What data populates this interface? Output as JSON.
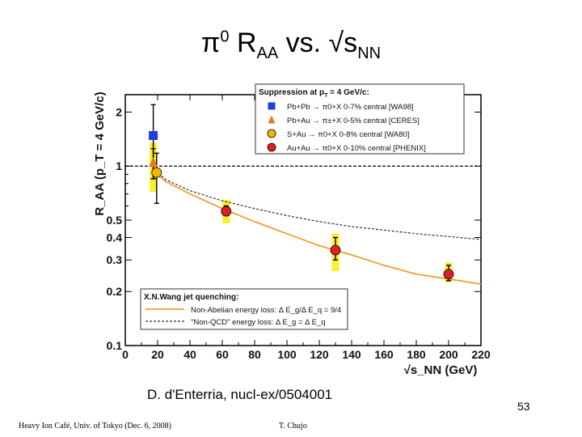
{
  "slide": {
    "title_parts": {
      "pi": "π",
      "sup": "0",
      "r": " R",
      "aa": "AA",
      "vs": " vs. √s",
      "nn": "NN"
    },
    "citation": "D. d'Enterria, nucl-ex/0504001",
    "page_number": "53",
    "footer_left": "Heavy Ion Café, Univ. of Tokyo (Dec. 6, 2008)",
    "footer_center": "T. Chujo"
  },
  "chart_data": {
    "type": "scatter",
    "ylabel": "R_AA (p_T = 4 GeV/c)",
    "xlabel": "√s_NN (GeV)",
    "xlim": [
      0,
      220
    ],
    "ylim": [
      0.1,
      2.5
    ],
    "yscale": "log",
    "x_ticks": [
      0,
      20,
      40,
      60,
      80,
      100,
      120,
      140,
      160,
      180,
      200,
      220
    ],
    "y_tick_labels": [
      {
        "value": 0.1,
        "label": "0.1"
      },
      {
        "value": 0.2,
        "label": "0.2"
      },
      {
        "value": 0.3,
        "label": "0.3"
      },
      {
        "value": 0.4,
        "label": "0.4"
      },
      {
        "value": 0.5,
        "label": "0.5"
      },
      {
        "value": 1,
        "label": "1"
      },
      {
        "value": 2,
        "label": "2"
      }
    ],
    "reference_line": 1,
    "legend_title_parts": {
      "a": "Suppression at p",
      "b": "T",
      "c": " = 4 GeV/c:"
    },
    "series": [
      {
        "name": "Pb+Pb → π0+X 0-7% central [WA98]",
        "marker": "square",
        "color": "#1f3fd6",
        "points": [
          {
            "x": 17.3,
            "y": 1.48,
            "err": [
              0.85,
              2.2
            ]
          }
        ]
      },
      {
        "name": "Pb+Au → π±+X 0-5% central [CERES]",
        "marker": "triangle",
        "color": "#e87722",
        "points": [
          {
            "x": 17.3,
            "y": 1.05,
            "err": [
              0.85,
              1.25
            ]
          }
        ]
      },
      {
        "name": "S+Au → π0+X 0-8% central [WA80]",
        "marker": "circle",
        "color": "#f4b400",
        "points": [
          {
            "x": 19.4,
            "y": 0.92,
            "err": [
              0.62,
              1.18
            ]
          }
        ]
      },
      {
        "name": "Au+Au → π0+X 0-10% central [PHENIX]",
        "marker": "circle",
        "color": "#e02020",
        "points": [
          {
            "x": 62.4,
            "y": 0.56,
            "err": [
              0.53,
              0.6
            ]
          },
          {
            "x": 130,
            "y": 0.34,
            "err": [
              0.3,
              0.4
            ]
          },
          {
            "x": 200,
            "y": 0.25,
            "err": [
              0.23,
              0.28
            ]
          }
        ]
      }
    ],
    "systematic_bands": [
      {
        "x": 17.3,
        "ylow": 0.72,
        "yhigh": 1.35
      },
      {
        "x": 62.4,
        "ylow": 0.48,
        "yhigh": 0.65
      },
      {
        "x": 130,
        "ylow": 0.26,
        "yhigh": 0.42
      },
      {
        "x": 200,
        "ylow": 0.225,
        "yhigh": 0.29
      }
    ],
    "theory_title": "X.N.Wang jet quenching:",
    "theory_curves": [
      {
        "name": "Non-Abelian energy loss: Δ E_g/Δ E_q = 9/4",
        "style": "solid",
        "color": "#f0a030",
        "points": [
          [
            17,
            0.95
          ],
          [
            25,
            0.82
          ],
          [
            40,
            0.7
          ],
          [
            60,
            0.58
          ],
          [
            80,
            0.49
          ],
          [
            100,
            0.42
          ],
          [
            120,
            0.36
          ],
          [
            140,
            0.32
          ],
          [
            160,
            0.28
          ],
          [
            180,
            0.25
          ],
          [
            200,
            0.235
          ],
          [
            220,
            0.22
          ]
        ]
      },
      {
        "name": "\"Non-QCD\" energy loss: Δ E_g = Δ E_q",
        "style": "dashed",
        "color": "#303030",
        "points": [
          [
            17,
            0.98
          ],
          [
            25,
            0.84
          ],
          [
            40,
            0.73
          ],
          [
            60,
            0.64
          ],
          [
            80,
            0.58
          ],
          [
            100,
            0.53
          ],
          [
            120,
            0.49
          ],
          [
            140,
            0.46
          ],
          [
            160,
            0.44
          ],
          [
            180,
            0.42
          ],
          [
            200,
            0.405
          ],
          [
            220,
            0.39
          ]
        ]
      }
    ]
  }
}
